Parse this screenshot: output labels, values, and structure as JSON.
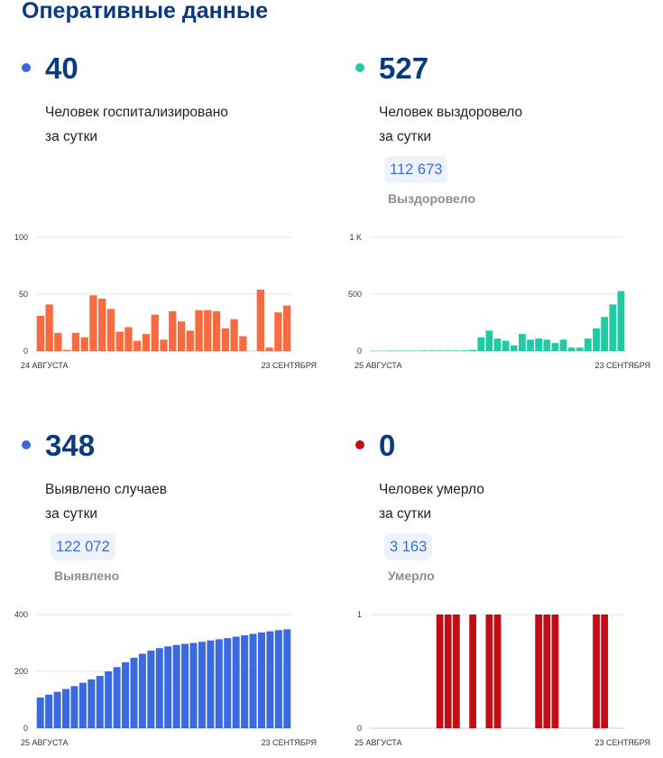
{
  "page": {
    "title": "Оперативные данные"
  },
  "panels": [
    {
      "id": "hospitalized",
      "number": "40",
      "caption_line1": "Человек госпитализировано",
      "caption_line2": "за сутки",
      "dot_color": "#3b6ae0",
      "total_value": null,
      "total_label": null
    },
    {
      "id": "recovered",
      "number": "527",
      "caption_line1": "Человек выздоровело",
      "caption_line2": "за сутки",
      "dot_color": "#1fcba2",
      "total_value": "112 673",
      "total_label": "Выздоровело"
    },
    {
      "id": "cases",
      "number": "348",
      "caption_line1": "Выявлено случаев",
      "caption_line2": "за сутки",
      "dot_color": "#3b6ae0",
      "total_value": "122 072",
      "total_label": "Выявлено"
    },
    {
      "id": "deaths",
      "number": "0",
      "caption_line1": "Человек умерло",
      "caption_line2": "за сутки",
      "dot_color": "#c40c15",
      "total_value": "3 163",
      "total_label": "Умерло"
    }
  ],
  "chart_data": [
    {
      "type": "bar",
      "bar_color": "#f86a3f",
      "ylim": [
        0,
        100
      ],
      "yticks": [
        {
          "v": 0,
          "label": "0"
        },
        {
          "v": 50,
          "label": "50"
        },
        {
          "v": 100,
          "label": "100"
        }
      ],
      "x_start_label": "24 АВГУСТА",
      "x_end_label": "23 СЕНТЯБРЯ",
      "values": [
        31,
        41,
        16,
        1,
        16,
        12,
        49,
        46,
        37,
        17,
        21,
        9,
        15,
        32,
        10,
        35,
        26,
        18,
        36,
        36,
        35,
        20,
        28,
        13,
        0,
        54,
        3,
        34,
        40
      ],
      "grid": true
    },
    {
      "type": "bar",
      "bar_color": "#1fcba2",
      "ylim": [
        0,
        1000
      ],
      "yticks": [
        {
          "v": 0,
          "label": "0"
        },
        {
          "v": 500,
          "label": "500"
        },
        {
          "v": 1000,
          "label": "1 K"
        }
      ],
      "x_start_label": "25 АВГУСТА",
      "x_end_label": "23 СЕНТЯБРЯ",
      "values": [
        2,
        2,
        4,
        4,
        4,
        4,
        5,
        5,
        5,
        5,
        5,
        6,
        10,
        120,
        180,
        110,
        90,
        50,
        150,
        100,
        110,
        100,
        70,
        100,
        30,
        30,
        110,
        200,
        300,
        410,
        527
      ],
      "grid": true
    },
    {
      "type": "bar",
      "bar_color": "#3b6ae0",
      "ylim": [
        0,
        400
      ],
      "yticks": [
        {
          "v": 0,
          "label": "0"
        },
        {
          "v": 200,
          "label": "200"
        },
        {
          "v": 400,
          "label": "400"
        }
      ],
      "x_start_label": "25 АВГУСТА",
      "x_end_label": "23 СЕНТЯБРЯ",
      "values": [
        108,
        118,
        128,
        138,
        148,
        160,
        172,
        184,
        200,
        215,
        232,
        248,
        262,
        273,
        282,
        288,
        293,
        297,
        300,
        304,
        309,
        313,
        317,
        322,
        327,
        332,
        337,
        341,
        345,
        348
      ],
      "grid": true
    },
    {
      "type": "bar",
      "bar_color": "#c40c15",
      "ylim": [
        0,
        1
      ],
      "yticks": [
        {
          "v": 0,
          "label": "0"
        },
        {
          "v": 1,
          "label": "1"
        }
      ],
      "x_start_label": "25 АВГУСТА",
      "x_end_label": "23 СЕНТЯБРЯ",
      "values": [
        0,
        0,
        0,
        0,
        0,
        0,
        0,
        0,
        1,
        1,
        1,
        0,
        1,
        0,
        1,
        1,
        0,
        0,
        0,
        0,
        1,
        1,
        1,
        0,
        0,
        0,
        0,
        1,
        1,
        0,
        0
      ],
      "grid": true
    }
  ]
}
